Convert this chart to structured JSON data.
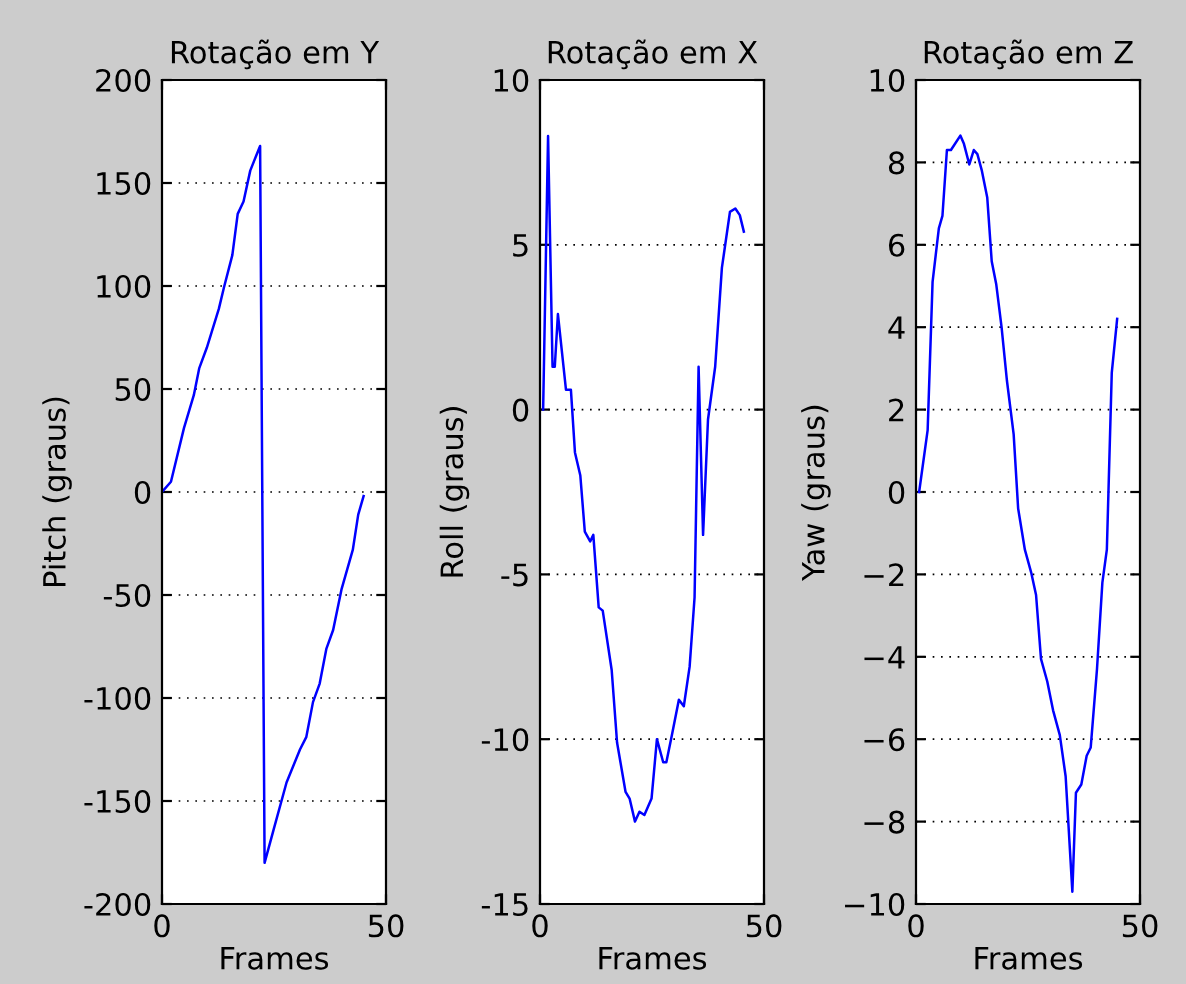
{
  "chart_data": [
    {
      "type": "line",
      "title": "Rotação em Y",
      "xlabel": "Frames",
      "ylabel": "Pitch (graus)",
      "xlim": [
        0,
        50
      ],
      "xticks": [
        0,
        50
      ],
      "ylim": [
        -200,
        200
      ],
      "yticks": [
        -200,
        -150,
        -100,
        -50,
        0,
        50,
        100,
        150,
        200
      ],
      "grid": "y",
      "legend": false,
      "series": [
        {
          "color": "#0000ff",
          "x": [
            0,
            2,
            4.9,
            7.1,
            8.3,
            10,
            12.7,
            13.8,
            15.7,
            16.9,
            18.2,
            19.7,
            21.9,
            22.9,
            24.9,
            27.8,
            30.8,
            32.2,
            33.7,
            35.2,
            36.7,
            38.2,
            40.1,
            42.6,
            43.8,
            45
          ],
          "values": [
            0,
            5,
            31,
            47,
            60,
            70,
            89,
            99,
            115,
            135,
            141,
            156,
            168,
            -180,
            -164,
            -141,
            -125,
            -119,
            -102,
            -93,
            -76,
            -67,
            -47,
            -28,
            -11,
            -2
          ]
        }
      ]
    },
    {
      "type": "line",
      "title": "Rotação em X",
      "xlabel": "Frames",
      "ylabel": "Roll (graus)",
      "xlim": [
        0,
        50
      ],
      "xticks": [
        0,
        50
      ],
      "ylim": [
        -15,
        10
      ],
      "yticks": [
        -15,
        -10,
        -5,
        0,
        5,
        10
      ],
      "grid": "y",
      "legend": false,
      "series": [
        {
          "color": "#0000ff",
          "x": [
            0.7,
            1.8,
            2.8,
            3.3,
            4.0,
            5.8,
            6.9,
            7.8,
            9,
            10,
            11.2,
            11.9,
            13.1,
            14,
            16,
            17.2,
            19.1,
            20,
            21.2,
            22.2,
            23.3,
            24.9,
            26.1,
            27.5,
            28.2,
            29.4,
            31,
            32.1,
            33.4,
            34.5,
            35.4,
            36.4,
            37.5,
            39.1,
            40.6,
            42.4,
            43.6,
            44.6,
            45.5
          ],
          "values": [
            0,
            8.3,
            1.3,
            1.3,
            2.9,
            0.6,
            0.6,
            -1.3,
            -2,
            -3.7,
            -4,
            -3.8,
            -6,
            -6.1,
            -7.9,
            -10.1,
            -11.6,
            -11.8,
            -12.5,
            -12.2,
            -12.3,
            -11.8,
            -10,
            -10.7,
            -10.7,
            -9.9,
            -8.8,
            -9,
            -7.8,
            -5.7,
            1.3,
            -3.8,
            -0.3,
            1.3,
            4.3,
            6.0,
            6.1,
            5.9,
            5.4
          ]
        }
      ]
    },
    {
      "type": "line",
      "title": "Rotação em Z",
      "xlabel": "Frames",
      "ylabel": "Yaw (graus)",
      "xlim": [
        0,
        50
      ],
      "xticks": [
        0,
        50
      ],
      "ylim": [
        -10,
        10
      ],
      "yticks": [
        {
          "value": -10,
          "label": "−10"
        },
        {
          "value": -8,
          "label": "−8"
        },
        {
          "value": -6,
          "label": "−6"
        },
        {
          "value": -4,
          "label": "−4"
        },
        {
          "value": -2,
          "label": "−2"
        },
        0,
        2,
        4,
        6,
        8,
        10
      ],
      "grid": "y",
      "legend": false,
      "series": [
        {
          "color": "#0000ff",
          "x": [
            0.7,
            2.6,
            3.7,
            5.1,
            5.9,
            6.9,
            7.8,
            9.9,
            10.7,
            11.9,
            12.9,
            13.7,
            14.7,
            15.9,
            16.9,
            17.9,
            19.1,
            20.3,
            21.8,
            22.8,
            24.3,
            25.7,
            26.8,
            27.9,
            29.3,
            30.6,
            32.1,
            33.4,
            34.9,
            35.7,
            36.9,
            38.1,
            39,
            40.4,
            41.6,
            42.6,
            43.7,
            44.9
          ],
          "values": [
            0,
            1.5,
            5.1,
            6.4,
            6.7,
            8.3,
            8.3,
            8.65,
            8.45,
            7.95,
            8.3,
            8.2,
            7.8,
            7.15,
            5.6,
            5.05,
            4,
            2.7,
            1.4,
            -0.4,
            -1.4,
            -1.95,
            -2.5,
            -4.05,
            -4.6,
            -5.3,
            -5.9,
            -6.9,
            -9.7,
            -7.3,
            -7.1,
            -6.4,
            -6.2,
            -4.3,
            -2.2,
            -1.4,
            2.9,
            4.2
          ]
        }
      ]
    }
  ]
}
